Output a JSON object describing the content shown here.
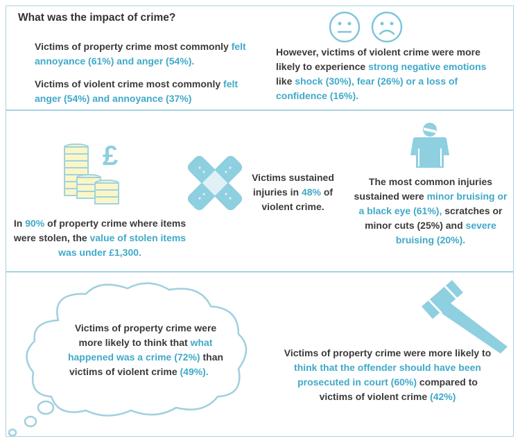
{
  "title": "What was the impact of crime?",
  "property_emotions": {
    "pre": "Victims of property crime most commonly ",
    "hl": "felt annoyance (61%) and anger (54%)."
  },
  "violent_emotions": {
    "pre": "Victims of violent crime most commonly ",
    "hl": "felt anger (54%) and annoyance (37%)"
  },
  "violent_negative": {
    "pre": "However, victims of violent crime were more likely to experience ",
    "hl": "strong negative emotions",
    "mid": " like ",
    "hl2": "shock (30%), fear (26%) or a loss of confidence (16%)."
  },
  "stolen_value": {
    "pre": "In ",
    "hl1": "90%",
    "mid": " of property crime where items were stolen, the ",
    "hl2": "value of stolen items was under £1,300."
  },
  "injuries": {
    "pre": "Victims sustained injuries in ",
    "hl": "48%",
    "post": " of violent crime."
  },
  "common_injuries": {
    "pre": "The most common injuries sustained were ",
    "hl1": "minor bruising or a black eye (61%),",
    "mid": "  scratches or minor cuts (25%) and ",
    "hl2": "severe bruising (20%)."
  },
  "cloud": {
    "pre": "Victims of property crime were more likely to think that ",
    "hl1": "what happened was a crime (72%)",
    "mid": " than",
    "line2": "victims of violent crime ",
    "hl2": "(49%)."
  },
  "prosecuted": {
    "pre": "Victims of property crime were more likely to ",
    "hl": "think that the offender should have been prosecuted in court (60%)",
    "mid": " compared to victims of violent crime ",
    "hl2": "(42%)"
  },
  "icons": {
    "faces": [
      "neutral-face-icon",
      "sad-face-icon"
    ],
    "money": "coins-pound-icon",
    "plaster": "plaster-icon",
    "person": "injured-person-icon",
    "gavel": "gavel-icon",
    "pound_symbol": "£"
  },
  "colors": {
    "accent": "#3fa9c9",
    "icon_blue": "#8ecfe0",
    "coin_yellow": "#fbf6c8",
    "border": "#a6d3df"
  }
}
